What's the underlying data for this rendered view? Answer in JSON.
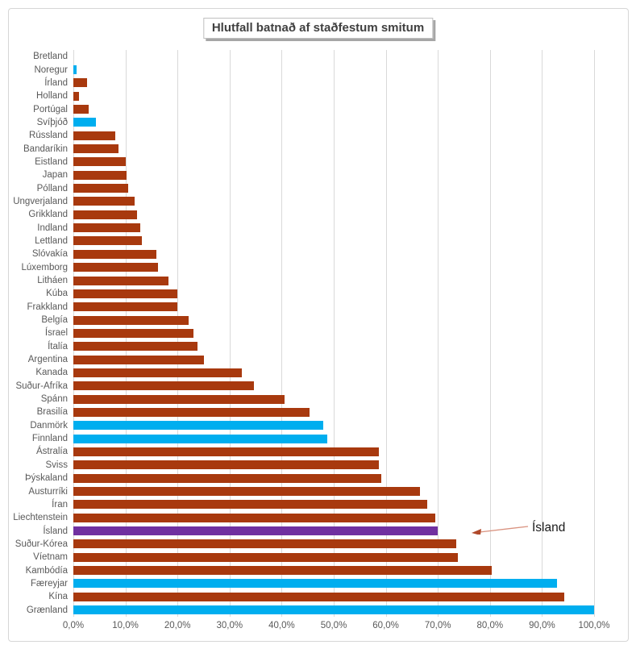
{
  "title": "Hlutfall batnað af staðfestum smitum",
  "annotation": {
    "label": "Ísland"
  },
  "colors": {
    "red": "#A8390E",
    "blue": "#00AEEF",
    "purple": "#7030A0",
    "grid": "#D9D9D9",
    "axis_text": "#595959",
    "title_text": "#404040",
    "arrow_line": "#D9927F",
    "arrow_head": "#B0492B"
  },
  "chart_data": {
    "type": "bar",
    "orientation": "horizontal",
    "title": "Hlutfall batnað af staðfestum smitum",
    "xlabel": "",
    "ylabel": "",
    "xlim": [
      0,
      100
    ],
    "grid": "vertical",
    "x_tick_labels": [
      "0,0%",
      "10,0%",
      "20,0%",
      "30,0%",
      "40,0%",
      "50,0%",
      "60,0%",
      "70,0%",
      "80,0%",
      "90,0%",
      "100,0%"
    ],
    "categories": [
      "Bretland",
      "Noregur",
      "Írland",
      "Holland",
      "Portúgal",
      "Svíþjóð",
      "Rússland",
      "Bandaríkin",
      "Eistland",
      "Japan",
      "Pólland",
      "Ungverjaland",
      "Grikkland",
      "Indland",
      "Lettland",
      "Slóvakía",
      "Lúxemborg",
      "Litháen",
      "Kúba",
      "Frakkland",
      "Belgía",
      "Ísrael",
      "Ítalía",
      "Argentina",
      "Kanada",
      "Suður-Afríka",
      "Spánn",
      "Brasilía",
      "Danmörk",
      "Finnland",
      "Ástralía",
      "Sviss",
      "Þýskaland",
      "Austurríki",
      "Íran",
      "Liechtenstein",
      "Ísland",
      "Suður-Kórea",
      "Víetnam",
      "Kambódía",
      "Færeyjar",
      "Kína",
      "Grænland"
    ],
    "values": [
      0.0,
      0.6,
      2.6,
      1.1,
      2.9,
      4.4,
      8.1,
      8.6,
      10.0,
      10.2,
      10.6,
      11.8,
      12.3,
      12.9,
      13.1,
      16.0,
      16.2,
      18.3,
      19.9,
      20.0,
      22.1,
      23.1,
      23.8,
      25.0,
      32.4,
      34.7,
      40.5,
      45.4,
      48.0,
      48.8,
      58.6,
      58.6,
      59.1,
      66.5,
      67.9,
      69.5,
      69.9,
      73.6,
      73.9,
      80.3,
      92.9,
      94.3,
      100.0
    ],
    "bar_colors": [
      "red",
      "blue",
      "red",
      "red",
      "red",
      "blue",
      "red",
      "red",
      "red",
      "red",
      "red",
      "red",
      "red",
      "red",
      "red",
      "red",
      "red",
      "red",
      "red",
      "red",
      "red",
      "red",
      "red",
      "red",
      "red",
      "red",
      "red",
      "red",
      "blue",
      "blue",
      "red",
      "red",
      "red",
      "red",
      "red",
      "red",
      "purple",
      "red",
      "red",
      "red",
      "blue",
      "red",
      "blue"
    ],
    "highlight": {
      "category": "Ísland",
      "color": "purple",
      "annotation": "Ísland"
    },
    "legend": "none"
  }
}
